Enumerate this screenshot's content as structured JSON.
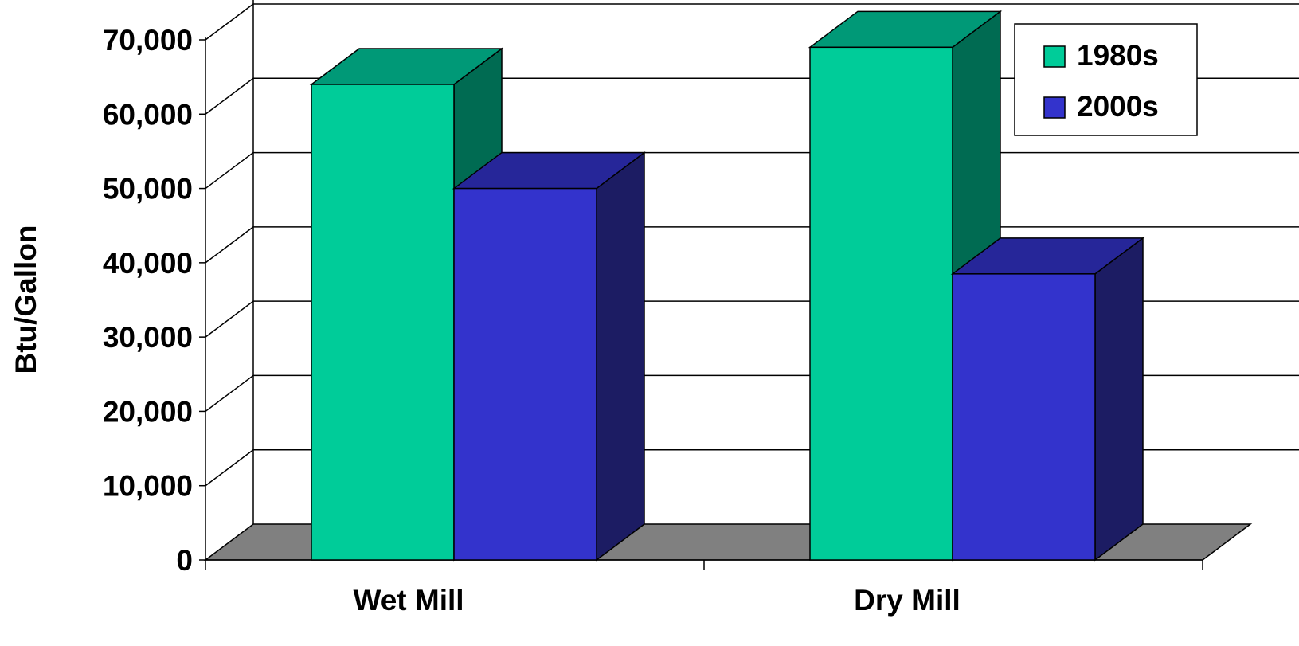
{
  "chart_data": {
    "type": "bar",
    "title": "",
    "xlabel": "",
    "ylabel": "Btu/Gallon",
    "categories": [
      "Wet Mill",
      "Dry Mill"
    ],
    "series": [
      {
        "name": "1980s",
        "values": [
          64000,
          69000
        ]
      },
      {
        "name": "2000s",
        "values": [
          50000,
          38500
        ]
      }
    ],
    "ylim": [
      0,
      70000
    ],
    "yticks": [
      0,
      10000,
      20000,
      30000,
      40000,
      50000,
      60000,
      70000
    ],
    "ytick_labels": [
      "0",
      "10,000",
      "20,000",
      "30,000",
      "40,000",
      "50,000",
      "60,000",
      "70,000"
    ],
    "grid": true,
    "three_d": true,
    "legend": {
      "position": "top-right",
      "items": [
        {
          "label": "1980s",
          "color": "#00CC99"
        },
        {
          "label": "2000s",
          "color": "#3333CC"
        }
      ]
    },
    "colors": {
      "1980s": {
        "front": "#00CC99",
        "top": "#009977",
        "side": "#006B52"
      },
      "2000s": {
        "front": "#3333CC",
        "top": "#262699",
        "side": "#1C1C63"
      },
      "floor": "#808080",
      "grid": "#000000"
    }
  }
}
